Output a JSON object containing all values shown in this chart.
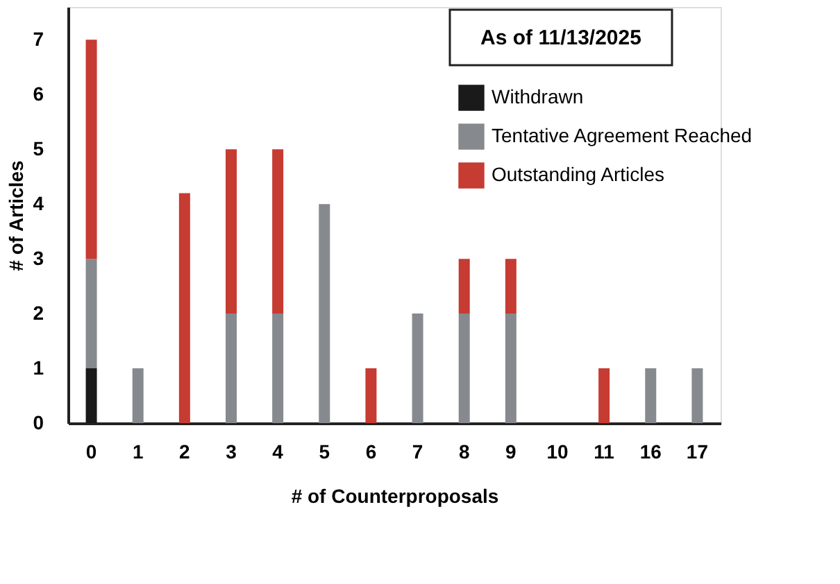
{
  "chart_data": {
    "type": "bar",
    "stacked": true,
    "xlabel": "# of Counterproposals",
    "ylabel": "# of Articles",
    "annotations": [
      "As of 11/13/2025"
    ],
    "categories": [
      "0",
      "1",
      "2",
      "3",
      "4",
      "5",
      "6",
      "7",
      "8",
      "9",
      "10",
      "11",
      "16",
      "17"
    ],
    "series": [
      {
        "name": "Withdrawn",
        "color": "#1a1a1a",
        "values": [
          1,
          0,
          0,
          0,
          0,
          0,
          0,
          0,
          0,
          0,
          0,
          0,
          0,
          0
        ]
      },
      {
        "name": "Tentative Agreement Reached",
        "color": "#868a8e",
        "values": [
          2,
          1,
          0,
          2,
          2,
          4,
          0,
          2,
          2,
          2,
          0,
          0,
          1,
          1
        ]
      },
      {
        "name": "Outstanding Articles",
        "color": "#c63b32",
        "values": [
          4,
          0,
          4.2,
          3,
          3,
          0,
          1,
          0,
          1,
          1,
          0,
          1,
          0,
          0
        ]
      }
    ],
    "ylim": [
      0,
      7.6
    ],
    "yticks": [
      0,
      1,
      2,
      3,
      4,
      5,
      6,
      7
    ],
    "grid": false,
    "legend": "top right"
  }
}
